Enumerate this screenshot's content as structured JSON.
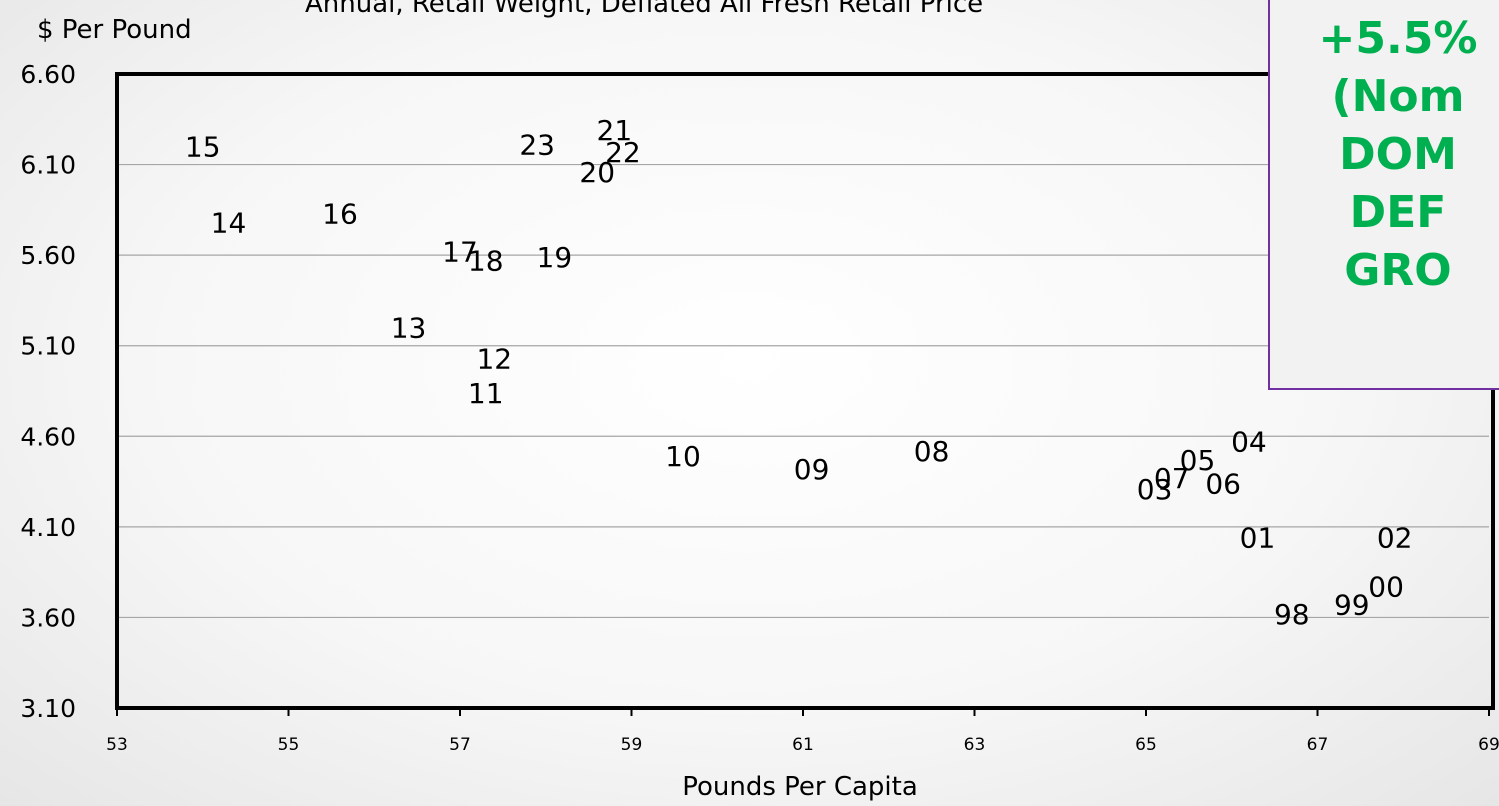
{
  "chart_data": {
    "type": "scatter",
    "title": "Annual, Retail Weight, Deflated All Fresh Retail Price",
    "ylabel": "$ Per Pound",
    "xlabel": "Pounds Per Capita",
    "xlim": [
      53,
      69
    ],
    "ylim": [
      3.1,
      6.6
    ],
    "x_ticks": [
      "53",
      "55",
      "57",
      "59",
      "61",
      "63",
      "65",
      "67",
      "69"
    ],
    "y_ticks": [
      "6.60",
      "6.10",
      "5.60",
      "5.10",
      "4.60",
      "4.10",
      "3.60",
      "3.10"
    ],
    "grid": "horizontal",
    "points": [
      {
        "label": "15",
        "x": 54.0,
        "y": 6.2
      },
      {
        "label": "14",
        "x": 54.3,
        "y": 5.78
      },
      {
        "label": "16",
        "x": 55.6,
        "y": 5.83
      },
      {
        "label": "13",
        "x": 56.4,
        "y": 5.2
      },
      {
        "label": "17",
        "x": 57.0,
        "y": 5.62
      },
      {
        "label": "18",
        "x": 57.3,
        "y": 5.57
      },
      {
        "label": "12",
        "x": 57.4,
        "y": 5.03
      },
      {
        "label": "11",
        "x": 57.3,
        "y": 4.84
      },
      {
        "label": "23",
        "x": 57.9,
        "y": 6.21
      },
      {
        "label": "19",
        "x": 58.1,
        "y": 5.59
      },
      {
        "label": "20",
        "x": 58.6,
        "y": 6.06
      },
      {
        "label": "21",
        "x": 58.8,
        "y": 6.29
      },
      {
        "label": "22",
        "x": 58.9,
        "y": 6.17
      },
      {
        "label": "10",
        "x": 59.6,
        "y": 4.49
      },
      {
        "label": "09",
        "x": 61.1,
        "y": 4.42
      },
      {
        "label": "08",
        "x": 62.5,
        "y": 4.52
      },
      {
        "label": "03",
        "x": 65.1,
        "y": 4.31
      },
      {
        "label": "07",
        "x": 65.3,
        "y": 4.37
      },
      {
        "label": "05",
        "x": 65.6,
        "y": 4.47
      },
      {
        "label": "06",
        "x": 65.9,
        "y": 4.34
      },
      {
        "label": "04",
        "x": 66.2,
        "y": 4.57
      },
      {
        "label": "01",
        "x": 66.3,
        "y": 4.04
      },
      {
        "label": "02",
        "x": 67.9,
        "y": 4.04
      },
      {
        "label": "98",
        "x": 66.7,
        "y": 3.62
      },
      {
        "label": "99",
        "x": 67.4,
        "y": 3.67
      },
      {
        "label": "00",
        "x": 67.8,
        "y": 3.77
      }
    ]
  },
  "callout": {
    "lines": [
      "+5.5%",
      "(Nom",
      "DOM",
      "DEF",
      "GRO"
    ],
    "text_color": "#00b050",
    "border_color": "#7030a0"
  }
}
